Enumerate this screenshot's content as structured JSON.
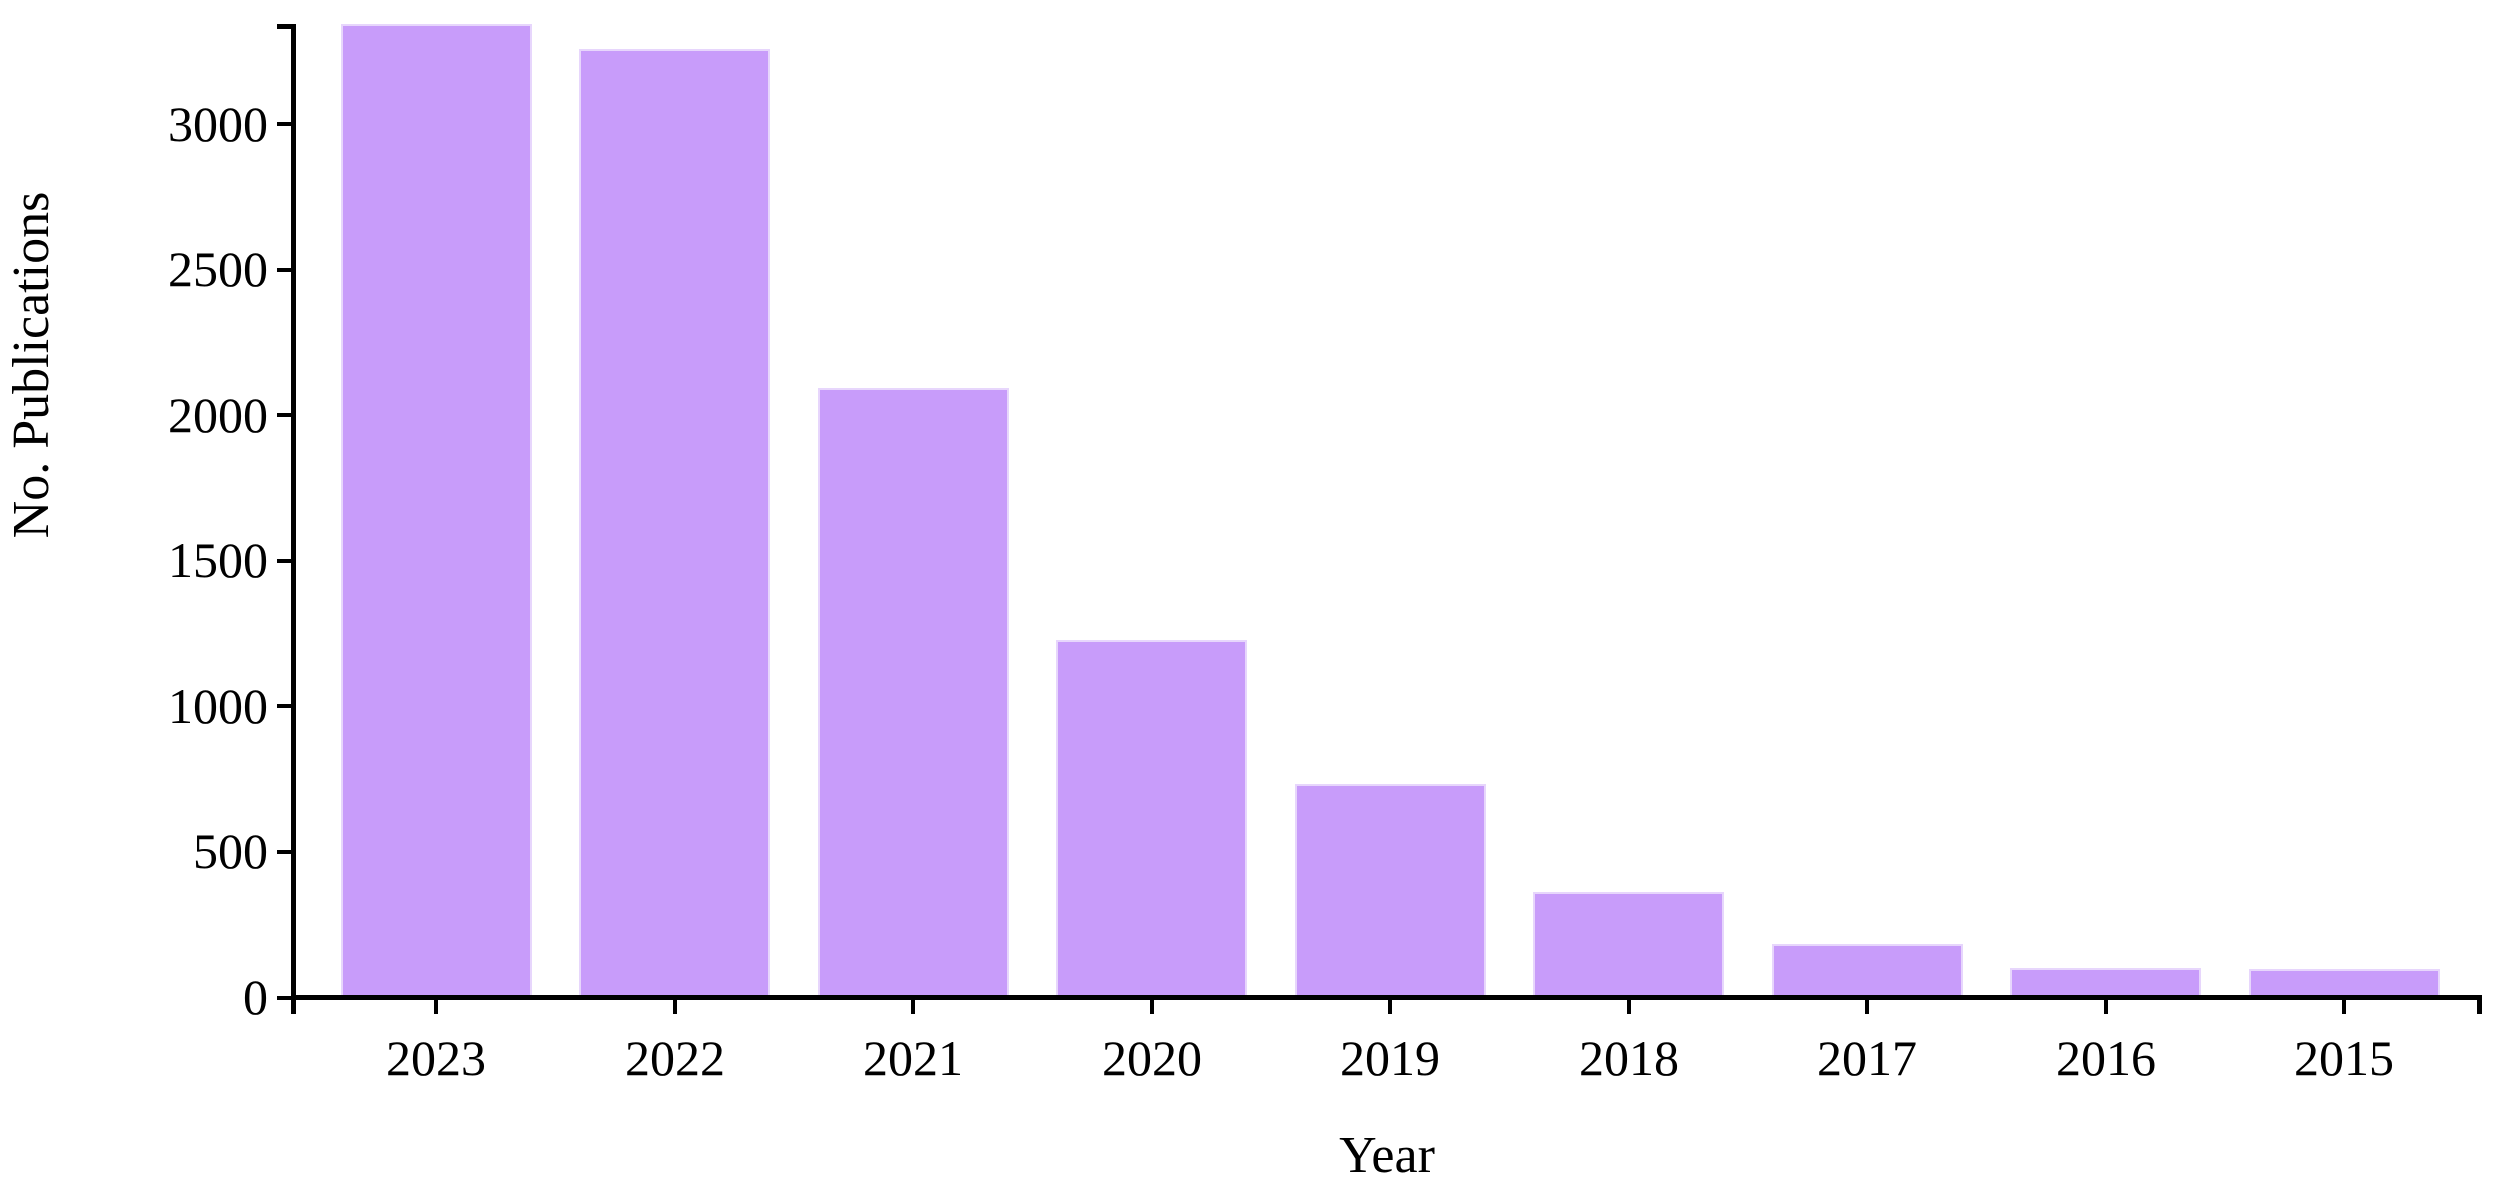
{
  "chart_data": {
    "type": "bar",
    "title": "",
    "xlabel": "Year",
    "ylabel": "No. Publications",
    "categories": [
      "2023",
      "2022",
      "2021",
      "2020",
      "2019",
      "2018",
      "2017",
      "2016",
      "2015"
    ],
    "values": [
      3335,
      3248,
      2085,
      1218,
      723,
      355,
      174,
      94,
      91
    ],
    "ylim": [
      0,
      3335
    ],
    "yticks": [
      0,
      500,
      1000,
      1500,
      2000,
      2500,
      3000
    ],
    "grid": false,
    "legend_position": "none",
    "bar_color": "#c89cfa",
    "bar_edge_color": "#e7d6fc",
    "axis_color": "#000000",
    "text_color": "#000000"
  }
}
